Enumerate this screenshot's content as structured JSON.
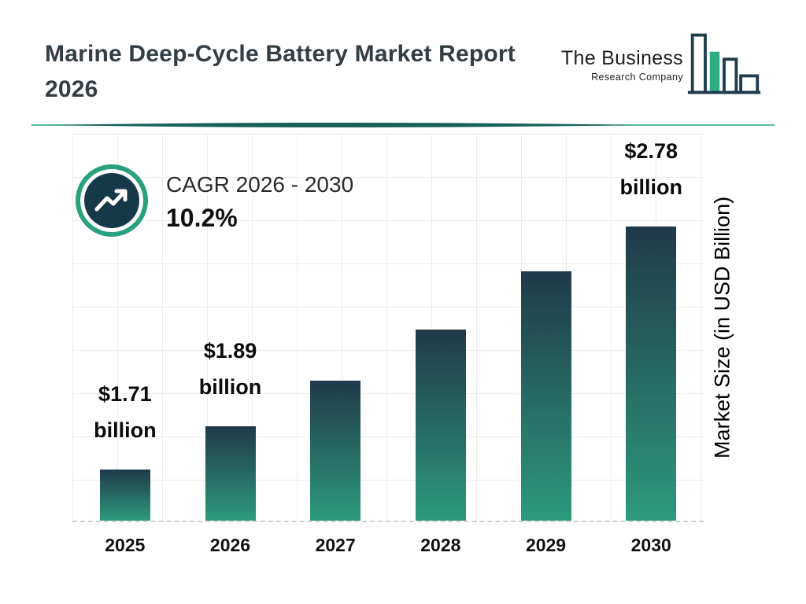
{
  "header": {
    "title_line1": "Marine Deep-Cycle Battery Market Report",
    "title_line2": "2026"
  },
  "logo": {
    "line1": "The Business",
    "line2": "Research Company"
  },
  "cagr": {
    "label": "CAGR 2026 - 2030",
    "value": "10.2%"
  },
  "chart_data": {
    "type": "bar",
    "title": "Marine Deep-Cycle Battery Market Report 2026",
    "categories": [
      "2025",
      "2026",
      "2027",
      "2028",
      "2029",
      "2030"
    ],
    "values": [
      1.71,
      1.89,
      2.08,
      2.29,
      2.53,
      2.78
    ],
    "unit": "USD Billion",
    "ylabel": "Market Size (in USD Billion)",
    "xlabel": "",
    "ylim": [
      1.5,
      3.1
    ],
    "grid": true,
    "baseline_style": "dashed",
    "legend": "none",
    "bar_labels": [
      {
        "value": "$1.71",
        "unit": "billion"
      },
      {
        "value": "$1.89",
        "unit": "billion"
      },
      null,
      null,
      null,
      {
        "value": "$2.78",
        "unit": "billion"
      }
    ],
    "cagr": {
      "period_label": "CAGR 2026 - 2030",
      "value": "10.2%"
    },
    "colors": {
      "bar_top": "#20394a",
      "bar_bottom": "#2d9a7c",
      "accent_teal": "#2aa17e",
      "accent_navy": "#16394a",
      "divider_dark": "#166158"
    }
  }
}
